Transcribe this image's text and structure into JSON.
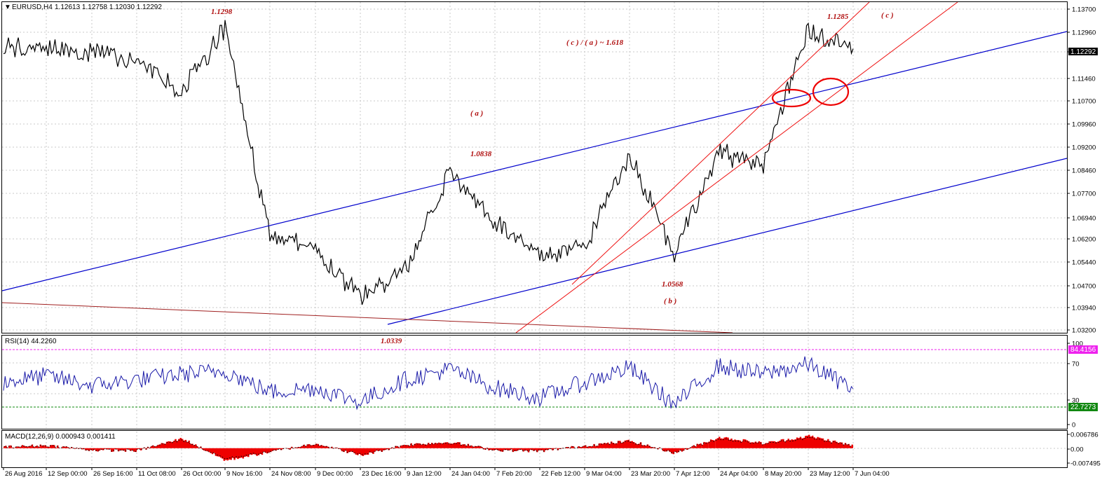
{
  "chart_header": {
    "symbol_label": "EURUSD,H4",
    "ohlc": "1.12613 1.12758 1.12030 1.12292"
  },
  "price_axis": {
    "ticks": [
      "1.13700",
      "1.12960",
      "1.12200",
      "1.11460",
      "1.10700",
      "1.09960",
      "1.09200",
      "1.08460",
      "1.07700",
      "1.06940",
      "1.06200",
      "1.05440",
      "1.04700",
      "1.03940",
      "1.03200"
    ],
    "current_price": "1.12292"
  },
  "time_axis": {
    "labels": [
      "26 Aug 2016",
      "12 Sep 00:00",
      "26 Sep 16:00",
      "11 Oct 08:00",
      "26 Oct 00:00",
      "9 Nov 16:00",
      "24 Nov 08:00",
      "9 Dec 00:00",
      "23 Dec 16:00",
      "9 Jan 12:00",
      "24 Jan 04:00",
      "7 Feb 20:00",
      "22 Feb 12:00",
      "9 Mar 04:00",
      "23 Mar 20:00",
      "7 Apr 12:00",
      "24 Apr 04:00",
      "8 May 20:00",
      "23 May 12:00",
      "7 Jun 04:00"
    ]
  },
  "annotations": {
    "high_1": "1.1298",
    "high_2": "1.1285",
    "wave_a_label": "( a )",
    "wave_b_label": "( b )",
    "wave_c_label": "( c )",
    "ratio_label": "( c ) / ( a ) ~ 1.618",
    "level_a": "1.0838",
    "level_b": "1.0568",
    "low_1": "1.0339"
  },
  "rsi_panel": {
    "header": "RSI(14) 44.2260",
    "ticks": [
      "100",
      "70",
      "30",
      "0"
    ],
    "upper_level_badge": "84.4156",
    "lower_level_badge": "22.7273"
  },
  "macd_panel": {
    "header": "MACD(12,26,9) 0.000943 0.001411",
    "ticks": [
      "0.006786",
      "0.00",
      "-0.007495"
    ]
  },
  "colors": {
    "price_line": "#000000",
    "blue_channel": "#0000cc",
    "red_channel": "#ee1111",
    "rsi_line": "#1a1aa8",
    "rsi_upper_level": "#ee22ee",
    "rsi_lower_level": "#118811",
    "macd_histogram": "#ee0000",
    "annotation": "#b01010"
  },
  "chart_data": [
    {
      "type": "line",
      "title": "EURUSD,H4",
      "ylim": [
        1.031,
        1.138
      ],
      "x": [
        "26 Aug 2016",
        "12 Sep 00:00",
        "26 Sep 16:00",
        "11 Oct 08:00",
        "26 Oct 00:00",
        "9 Nov 16:00",
        "24 Nov 08:00",
        "9 Dec 00:00",
        "23 Dec 16:00",
        "9 Jan 12:00",
        "24 Jan 04:00",
        "7 Feb 20:00",
        "22 Feb 12:00",
        "9 Mar 04:00",
        "23 Mar 20:00",
        "7 Apr 12:00",
        "24 Apr 04:00",
        "8 May 20:00",
        "23 May 12:00",
        "7 Jun 04:00"
      ],
      "series": [
        {
          "values": [
            1.123,
            1.124,
            1.122,
            1.119,
            1.109,
            1.1298,
            1.063,
            1.058,
            1.043,
            1.051,
            1.0838,
            1.067,
            1.056,
            1.059,
            1.089,
            1.0568,
            1.089,
            1.086,
            1.1285,
            1.1229
          ]
        }
      ]
    },
    {
      "type": "line",
      "title": "RSI(14) 44.2260",
      "ylim": [
        0,
        100
      ],
      "series": [
        {
          "values": [
            52,
            60,
            48,
            55,
            62,
            66,
            40,
            45,
            28,
            55,
            68,
            45,
            33,
            52,
            70,
            24,
            72,
            62,
            74,
            44
          ]
        }
      ]
    },
    {
      "type": "bar",
      "title": "MACD(12,26,9) 0.000943 0.001411",
      "ylim": [
        -0.007495,
        0.006786
      ],
      "series": [
        {
          "values": [
            0.0005,
            0.0012,
            -0.0008,
            -0.001,
            0.004,
            -0.005,
            -0.0015,
            0.002,
            -0.003,
            0.0015,
            0.0025,
            -0.0008,
            -0.0012,
            0.001,
            0.003,
            -0.002,
            0.0045,
            0.002,
            0.005,
            0.000943
          ]
        }
      ]
    }
  ]
}
